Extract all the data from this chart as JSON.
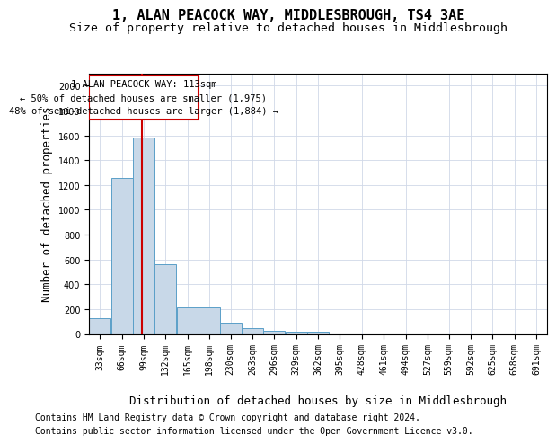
{
  "title": "1, ALAN PEACOCK WAY, MIDDLESBROUGH, TS4 3AE",
  "subtitle": "Size of property relative to detached houses in Middlesbrough",
  "xlabel": "Distribution of detached houses by size in Middlesbrough",
  "ylabel": "Number of detached properties",
  "bar_values": [
    130,
    1260,
    1580,
    560,
    215,
    215,
    90,
    45,
    25,
    15,
    15,
    0,
    0,
    0,
    0,
    0,
    0,
    0,
    0,
    0
  ],
  "bin_edges": [
    33,
    66,
    99,
    132,
    165,
    198,
    230,
    263,
    296,
    329,
    362,
    395,
    428,
    461,
    494,
    527,
    559,
    592,
    625,
    658,
    691
  ],
  "tick_labels": [
    "33sqm",
    "66sqm",
    "99sqm",
    "132sqm",
    "165sqm",
    "198sqm",
    "230sqm",
    "263sqm",
    "296sqm",
    "329sqm",
    "362sqm",
    "395sqm",
    "428sqm",
    "461sqm",
    "494sqm",
    "527sqm",
    "559sqm",
    "592sqm",
    "625sqm",
    "658sqm",
    "691sqm"
  ],
  "bar_color": "#c8d8e8",
  "bar_edge_color": "#5a9fc8",
  "red_line_x": 113,
  "ylim": [
    0,
    2100
  ],
  "yticks": [
    0,
    200,
    400,
    600,
    800,
    1000,
    1200,
    1400,
    1600,
    1800,
    2000
  ],
  "annotation_text": "1 ALAN PEACOCK WAY: 113sqm\n← 50% of detached houses are smaller (1,975)\n48% of semi-detached houses are larger (1,884) →",
  "annotation_box_color": "#cc0000",
  "footer_line1": "Contains HM Land Registry data © Crown copyright and database right 2024.",
  "footer_line2": "Contains public sector information licensed under the Open Government Licence v3.0.",
  "background_color": "#ffffff",
  "grid_color": "#d0d8e8",
  "title_fontsize": 11,
  "subtitle_fontsize": 9.5,
  "axis_fontsize": 9,
  "tick_fontsize": 7,
  "footer_fontsize": 7,
  "annotation_fontsize": 7.5
}
